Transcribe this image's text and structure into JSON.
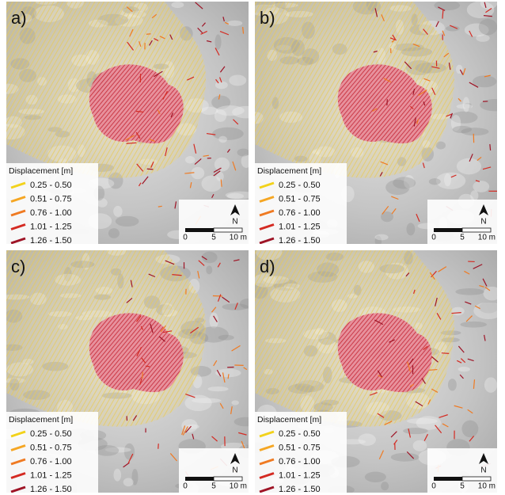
{
  "panels": [
    {
      "label": "a)",
      "legend": {
        "title": "Displacement [m]",
        "items": [
          {
            "label": "0.25 - 0.50",
            "color": "#f2d21b"
          },
          {
            "label": "0.51 - 0.75",
            "color": "#f5a623"
          },
          {
            "label": "0.76 - 1.00",
            "color": "#ef7a22"
          },
          {
            "label": "1.01 - 1.25",
            "color": "#d42a22"
          },
          {
            "label": "1.26 - 1.50",
            "color": "#9e1426"
          }
        ]
      },
      "north": "N",
      "scale": [
        "0",
        "5",
        "10 m"
      ]
    },
    {
      "label": "b)",
      "legend": {
        "title": "Displacement [m]",
        "items": [
          {
            "label": "0.25 - 0.50",
            "color": "#f2d21b"
          },
          {
            "label": "0.51 - 0.75",
            "color": "#f5a623"
          },
          {
            "label": "0.76 - 1.00",
            "color": "#ef7a22"
          },
          {
            "label": "1.01 - 1.25",
            "color": "#d42a22"
          },
          {
            "label": "1.26 - 1.50",
            "color": "#9e1426"
          }
        ]
      },
      "north": "N",
      "scale": [
        "0",
        "5",
        "10 m"
      ]
    },
    {
      "label": "c)",
      "legend": {
        "title": "Displacement [m]",
        "items": [
          {
            "label": "0.25 - 0.50",
            "color": "#f2d21b"
          },
          {
            "label": "0.51 - 0.75",
            "color": "#f5a623"
          },
          {
            "label": "0.76 - 1.00",
            "color": "#ef7a22"
          },
          {
            "label": "1.01 - 1.25",
            "color": "#d42a22"
          },
          {
            "label": "1.26 - 1.50",
            "color": "#9e1426"
          }
        ]
      },
      "north": "N",
      "scale": [
        "0",
        "5",
        "10 m"
      ]
    },
    {
      "label": "d)",
      "legend": {
        "title": "Displacement [m]",
        "items": [
          {
            "label": "0.25 - 0.50",
            "color": "#f2d21b"
          },
          {
            "label": "0.51 - 0.75",
            "color": "#f5a623"
          },
          {
            "label": "0.76 - 1.00",
            "color": "#ef7a22"
          },
          {
            "label": "1.01 - 1.25",
            "color": "#d42a22"
          },
          {
            "label": "1.26 - 1.50",
            "color": "#9e1426"
          }
        ]
      },
      "north": "N",
      "scale": [
        "0",
        "5",
        "10 m"
      ]
    }
  ]
}
